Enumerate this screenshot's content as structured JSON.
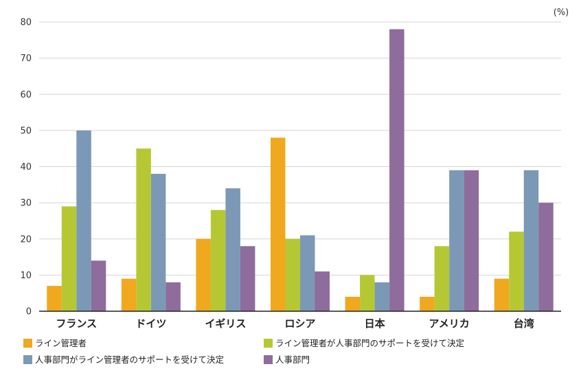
{
  "chart_data": {
    "type": "bar",
    "unit_label": "(%)",
    "ylim": [
      0,
      80
    ],
    "y_ticks": [
      0,
      10,
      20,
      30,
      40,
      50,
      60,
      70,
      80
    ],
    "categories": [
      "フランス",
      "ドイツ",
      "イギリス",
      "ロシア",
      "日本",
      "アメリカ",
      "台湾"
    ],
    "series": [
      {
        "name": "ライン管理者",
        "color": "#f0a81e",
        "values": [
          7,
          9,
          20,
          48,
          4,
          4,
          9
        ]
      },
      {
        "name": "ライン管理者が人事部門のサポートを受けて決定",
        "color": "#b5c833",
        "values": [
          29,
          45,
          28,
          20,
          10,
          18,
          22
        ]
      },
      {
        "name": "人事部門がライン管理者のサポートを受けて決定",
        "color": "#7b99b6",
        "values": [
          50,
          38,
          34,
          21,
          8,
          39,
          39
        ]
      },
      {
        "name": "人事部門",
        "color": "#8e6c9b",
        "values": [
          14,
          8,
          18,
          11,
          78,
          39,
          30
        ]
      }
    ],
    "legend_placement": "bottom",
    "grid": true
  }
}
